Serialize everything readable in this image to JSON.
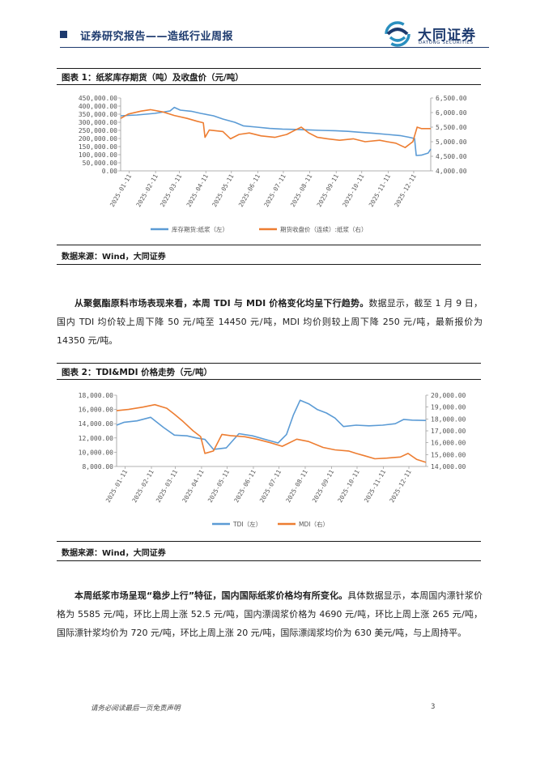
{
  "header": {
    "title": "证券研究报告——造纸行业周报",
    "logo_cn": "大同证券",
    "logo_en": "DATONG SECURITIES"
  },
  "figure1": {
    "title": "图表 1：纸浆库存期货（吨）及收盘价（元/吨）",
    "source": "数据来源：Wind，大同证券"
  },
  "figure2": {
    "title": "图表 2：TDI&MDI 价格走势（元/吨）",
    "source": "数据来源：Wind，大同证券"
  },
  "paragraph1": {
    "bold": "从聚氨酯原料市场表现来看，本周 TDI 与 MDI 价格变化均呈下行趋势。",
    "text": "数据显示，截至 1 月 9 日，国内 TDI 均价较上周下降 50 元/吨至 14450 元/吨，MDI 均价则较上周下降 250 元/吨，最新报价为 14350 元/吨。"
  },
  "paragraph2": {
    "bold": "本周纸浆市场呈现“稳步上行”特征，国内国际纸浆价格均有所变化。",
    "text": "具体数据显示，本周国内漂针浆价格为 5585 元/吨，环比上周上涨 52.5 元/吨，国内漂阔浆价格为 4690 元/吨，环比上周上涨 265 元/吨，国际漂针浆均价为 720 元/吨，环比上周上涨 20 元/吨，国际漂阔浆均价为 630 美元/吨，与上周持平。"
  },
  "footer": {
    "disclaimer": "请务必阅读最后一页免责声明",
    "page": "3"
  },
  "colors": {
    "blue": "#5b9bd5",
    "orange": "#ed7d31",
    "brand": "#1d3a6e"
  },
  "chart_data": [
    {
      "type": "line",
      "x_ticks": [
        "2025-01-11",
        "2025-02-11",
        "2025-03-11",
        "2025-04-11",
        "2025-05-11",
        "2025-06-11",
        "2025-07-11",
        "2025-08-11",
        "2025-09-11",
        "2025-10-11",
        "2025-11-11",
        "2025-12-11"
      ],
      "y_left": {
        "ticks": [
          "0.00",
          "50,000.00",
          "100,000.00",
          "150,000.00",
          "200,000.00",
          "250,000.00",
          "300,000.00",
          "350,000.00",
          "400,000.00",
          "450,000.00"
        ],
        "min": 0,
        "max": 450000
      },
      "y_right": {
        "ticks": [
          "4,000.00",
          "4,500.00",
          "5,000.00",
          "5,500.00",
          "6,000.00",
          "6,500.00"
        ],
        "min": 4000,
        "max": 6500
      },
      "series": [
        {
          "name": "库存期货:纸浆（左）",
          "axis": "left",
          "color": "#5b9bd5",
          "x": [
            "2025-01-01",
            "2025-01-20",
            "2025-02-10",
            "2025-02-28",
            "2025-03-05",
            "2025-03-12",
            "2025-03-25",
            "2025-04-05",
            "2025-04-20",
            "2025-05-01",
            "2025-05-15",
            "2025-05-25",
            "2025-06-10",
            "2025-06-25",
            "2025-07-10",
            "2025-07-25",
            "2025-08-10",
            "2025-08-25",
            "2025-09-10",
            "2025-09-25",
            "2025-10-10",
            "2025-10-25",
            "2025-11-10",
            "2025-11-25",
            "2025-12-05",
            "2025-12-12",
            "2025-12-14",
            "2025-12-20",
            "2025-12-28",
            "2025-12-31"
          ],
          "values": [
            340000,
            345000,
            355000,
            370000,
            392000,
            375000,
            368000,
            355000,
            340000,
            320000,
            300000,
            278000,
            270000,
            262000,
            258000,
            256000,
            253000,
            250000,
            248000,
            244000,
            238000,
            232000,
            225000,
            218000,
            208000,
            200000,
            95000,
            97000,
            110000,
            135000
          ]
        },
        {
          "name": "期货收盘价（连续）:纸浆（右）",
          "axis": "right",
          "color": "#ed7d31",
          "x": [
            "2025-01-01",
            "2025-01-10",
            "2025-01-25",
            "2025-02-05",
            "2025-02-20",
            "2025-03-05",
            "2025-03-20",
            "2025-04-01",
            "2025-04-08",
            "2025-04-10",
            "2025-04-15",
            "2025-05-01",
            "2025-05-10",
            "2025-05-20",
            "2025-06-01",
            "2025-06-15",
            "2025-07-01",
            "2025-07-15",
            "2025-07-25",
            "2025-08-01",
            "2025-08-10",
            "2025-08-20",
            "2025-09-01",
            "2025-09-15",
            "2025-10-01",
            "2025-10-15",
            "2025-11-01",
            "2025-11-10",
            "2025-11-20",
            "2025-12-01",
            "2025-12-10",
            "2025-12-15",
            "2025-12-20",
            "2025-12-31"
          ],
          "values": [
            5800,
            5950,
            6050,
            6100,
            6020,
            5900,
            5800,
            5700,
            5650,
            5150,
            5400,
            5350,
            5100,
            5250,
            5300,
            5200,
            5150,
            5250,
            5400,
            5500,
            5300,
            5150,
            5100,
            5050,
            5100,
            5000,
            5050,
            5000,
            4950,
            4800,
            5000,
            5500,
            5450,
            5450
          ]
        }
      ]
    },
    {
      "type": "line",
      "x_ticks": [
        "2025-01-11",
        "2025-02-11",
        "2025-03-11",
        "2025-04-11",
        "2025-05-11",
        "2025-06-11",
        "2025-07-11",
        "2025-08-11",
        "2025-09-11",
        "2025-10-11",
        "2025-11-11",
        "2025-12-11"
      ],
      "y_left": {
        "ticks": [
          "8,000.00",
          "10,000.00",
          "12,000.00",
          "14,000.00",
          "16,000.00",
          "18,000.00"
        ],
        "min": 8000,
        "max": 18000
      },
      "y_right": {
        "ticks": [
          "14,000.00",
          "15,000.00",
          "16,000.00",
          "17,000.00",
          "18,000.00",
          "19,000.00",
          "20,000.00"
        ],
        "min": 14000,
        "max": 20000
      },
      "series": [
        {
          "name": "TDI（左）",
          "axis": "left",
          "color": "#5b9bd5",
          "x": [
            "2025-01-01",
            "2025-01-10",
            "2025-01-25",
            "2025-02-10",
            "2025-02-25",
            "2025-03-10",
            "2025-03-25",
            "2025-04-05",
            "2025-04-15",
            "2025-04-25",
            "2025-05-10",
            "2025-05-25",
            "2025-06-10",
            "2025-06-25",
            "2025-07-10",
            "2025-07-20",
            "2025-07-28",
            "2025-08-05",
            "2025-08-15",
            "2025-08-25",
            "2025-09-05",
            "2025-09-15",
            "2025-09-25",
            "2025-10-10",
            "2025-10-25",
            "2025-11-10",
            "2025-11-25",
            "2025-12-05",
            "2025-12-15",
            "2025-12-31"
          ],
          "values": [
            13800,
            14200,
            14400,
            14900,
            13500,
            12400,
            12300,
            12000,
            11800,
            10400,
            10600,
            12600,
            12300,
            11800,
            11300,
            12500,
            15200,
            17300,
            16800,
            16000,
            15500,
            14800,
            13600,
            13800,
            13700,
            13800,
            14000,
            14600,
            14500,
            14450
          ]
        },
        {
          "name": "MDI（右）",
          "axis": "right",
          "color": "#ed7d31",
          "x": [
            "2025-01-01",
            "2025-01-15",
            "2025-02-01",
            "2025-02-15",
            "2025-03-01",
            "2025-03-10",
            "2025-03-20",
            "2025-04-01",
            "2025-04-10",
            "2025-04-15",
            "2025-04-25",
            "2025-05-05",
            "2025-05-15",
            "2025-06-01",
            "2025-06-15",
            "2025-07-01",
            "2025-07-15",
            "2025-08-01",
            "2025-08-15",
            "2025-09-01",
            "2025-09-15",
            "2025-10-01",
            "2025-10-10",
            "2025-10-20",
            "2025-11-01",
            "2025-11-15",
            "2025-12-01",
            "2025-12-10",
            "2025-12-20",
            "2025-12-31"
          ],
          "values": [
            18700,
            18800,
            19000,
            19200,
            18900,
            18400,
            17800,
            17000,
            16500,
            15100,
            15300,
            16700,
            16600,
            16500,
            16300,
            16000,
            15700,
            16300,
            16100,
            15600,
            15400,
            15300,
            15100,
            14900,
            14650,
            14700,
            14800,
            15100,
            14600,
            14350
          ]
        }
      ]
    }
  ]
}
